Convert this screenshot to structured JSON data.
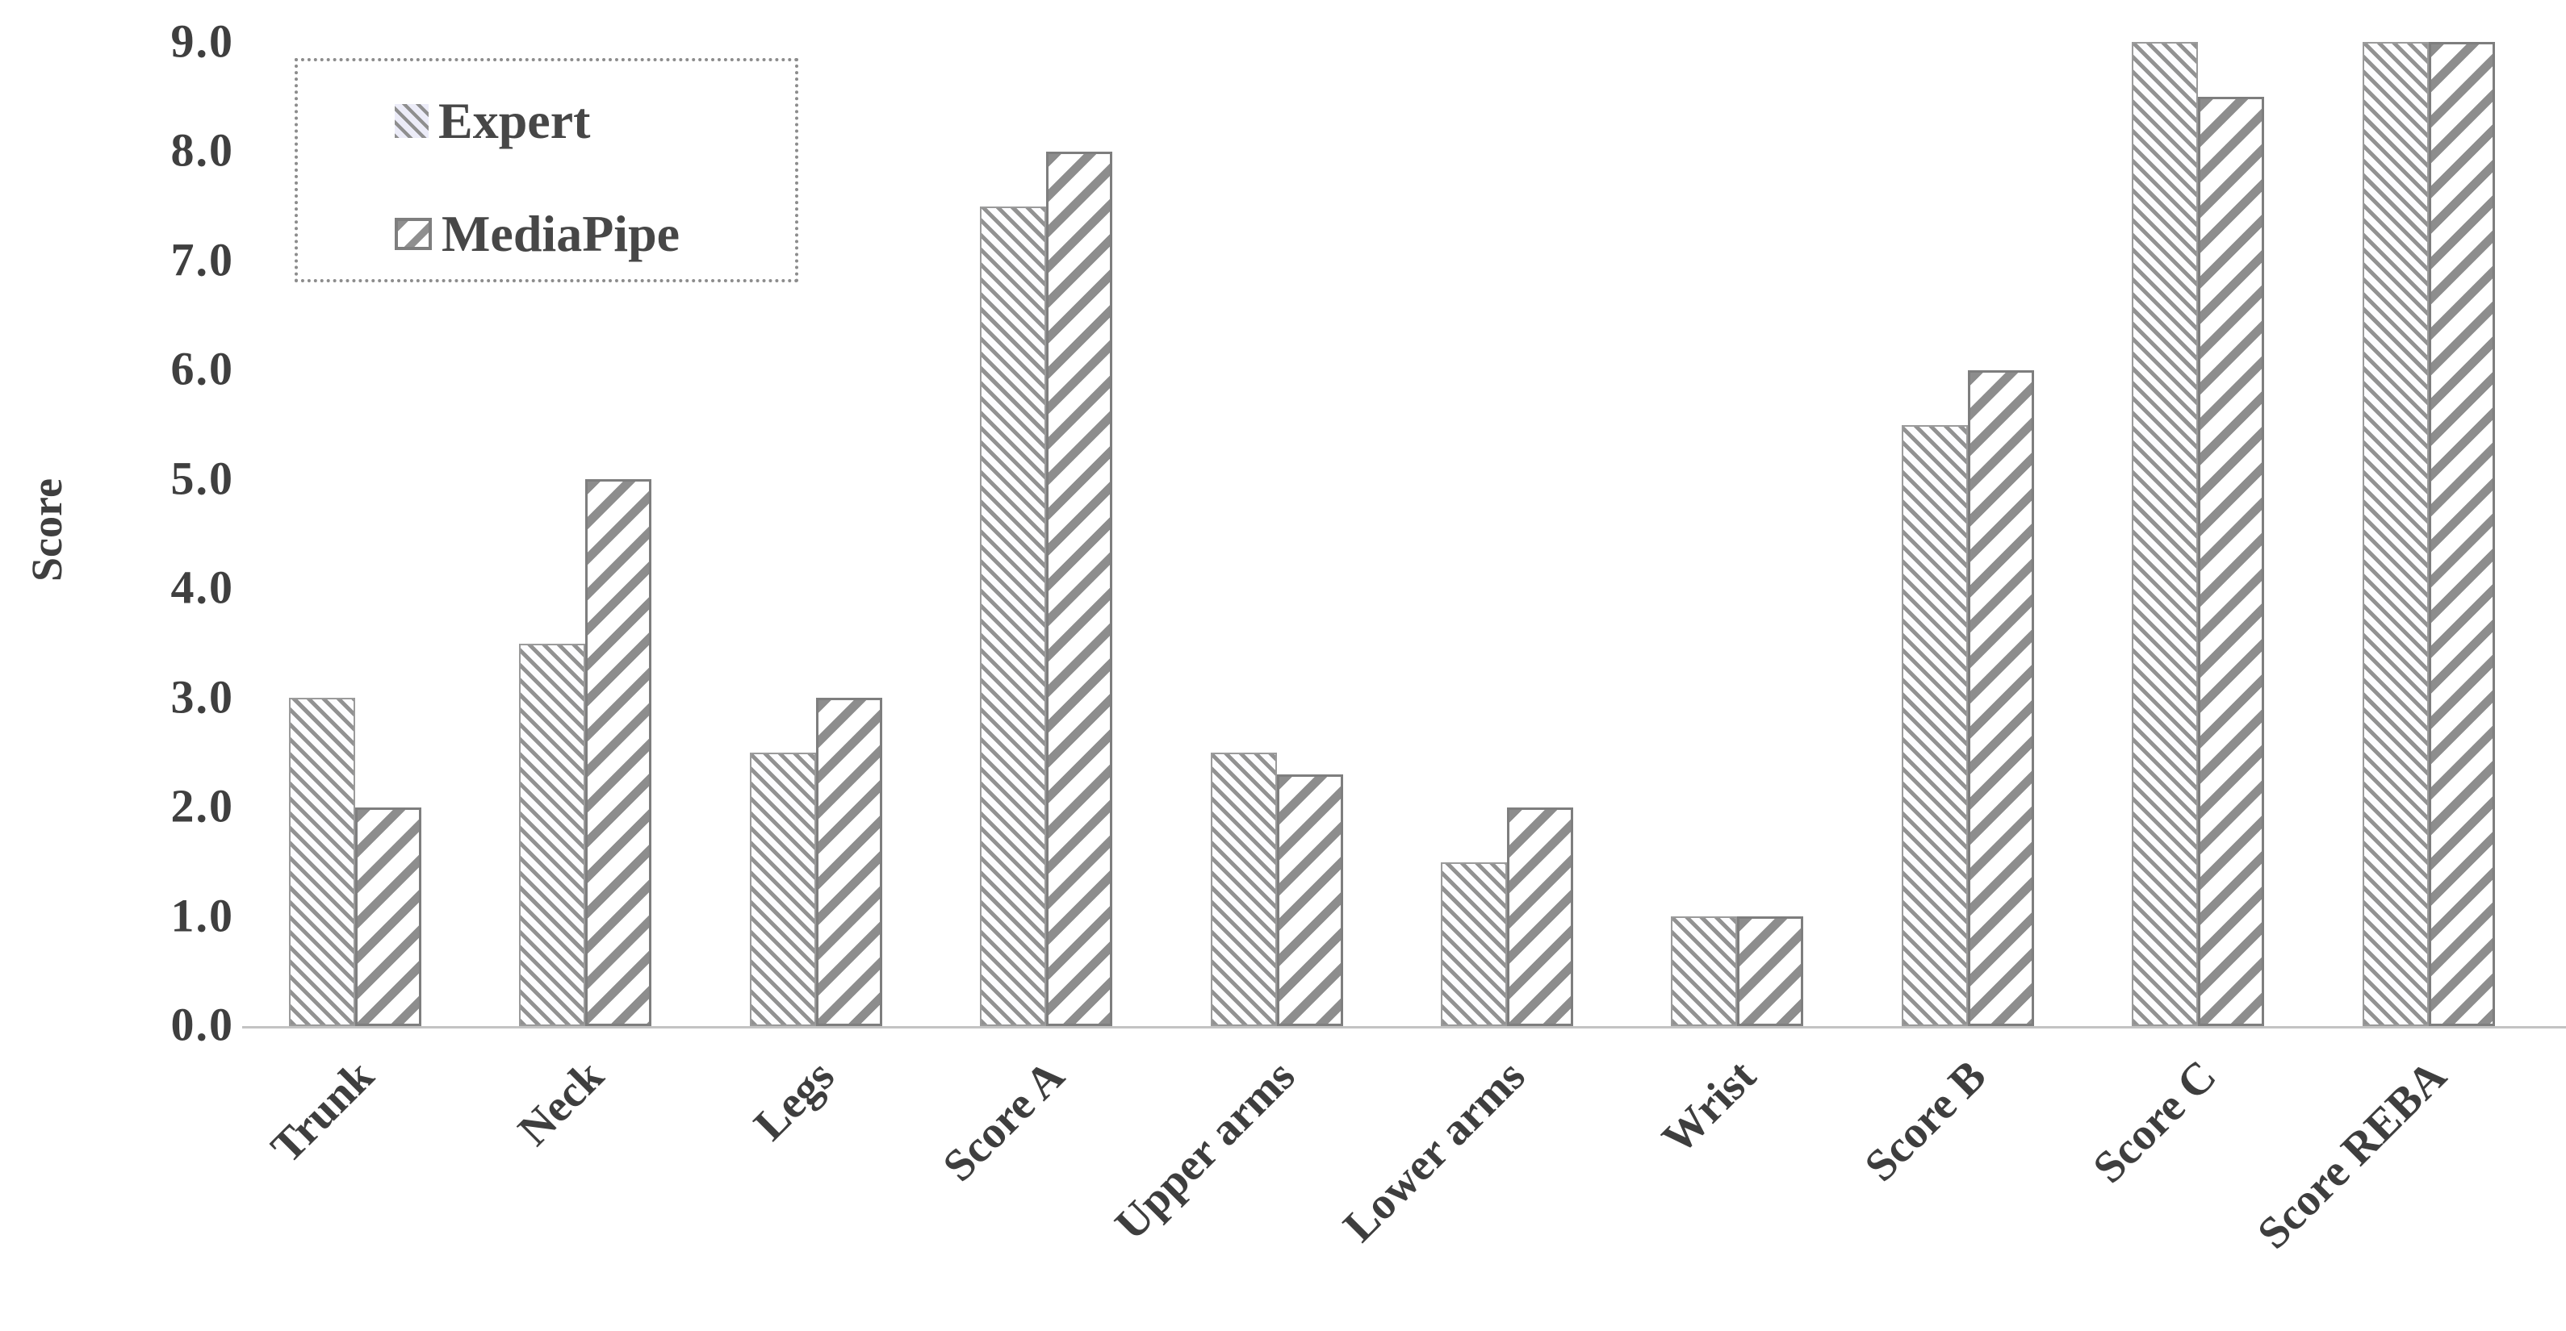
{
  "chart_data": {
    "type": "bar",
    "title": "",
    "xlabel": "",
    "ylabel": "Score",
    "ylim": [
      0,
      9
    ],
    "ytick_labels": [
      "0.0",
      "1.0",
      "2.0",
      "3.0",
      "4.0",
      "5.0",
      "6.0",
      "7.0",
      "8.0",
      "9.0"
    ],
    "grid": false,
    "legend_position": "top-left",
    "categories": [
      "Trunk",
      "Neck",
      "Legs",
      "Score A",
      "Upper arms",
      "Lower arms",
      "Wrist",
      "Score B",
      "Score C",
      "Score REBA"
    ],
    "series": [
      {
        "name": "Expert",
        "pattern": "fine-backslash-hatch",
        "values": [
          3.0,
          3.5,
          2.5,
          7.5,
          2.5,
          1.5,
          1.0,
          5.5,
          9.0,
          9.0
        ]
      },
      {
        "name": "MediaPipe",
        "pattern": "wide-slash-hatch",
        "values": [
          2.0,
          5.0,
          3.0,
          8.0,
          2.3,
          2.0,
          1.0,
          6.0,
          8.5,
          9.0
        ]
      }
    ],
    "colors": {
      "hatch_gray": "#8f8f8f",
      "bar_outline": "#7e7e7e",
      "text": "#3f3f3f",
      "axis_line": "#c3c3c3",
      "background": "#ffffff"
    }
  }
}
